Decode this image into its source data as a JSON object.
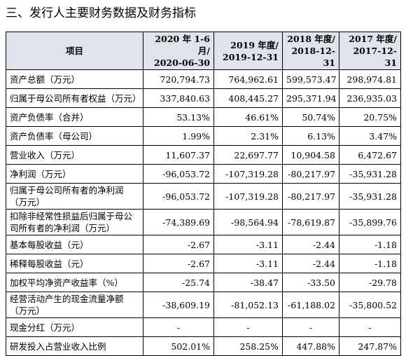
{
  "heading": "三、发行人主要财务数据及财务指标",
  "table": {
    "header": [
      [
        "项目"
      ],
      [
        "2020 年 1-6 月/",
        "2020-06-30"
      ],
      [
        "2019 年度/",
        "2019-12-31"
      ],
      [
        "2018 年度/",
        "2018-12-31"
      ],
      [
        "2017 年度/",
        "2017-12-31"
      ]
    ],
    "rows": [
      [
        "资产总额（万元）",
        "720,794.73",
        "764,962.61",
        "599,573.47",
        "298,974.81"
      ],
      [
        "归属于母公司所有者权益（万元）",
        "337,840.63",
        "408,445.27",
        "295,371.94",
        "236,935.03"
      ],
      [
        "资产负债率（合并）",
        "53.13%",
        "46.61%",
        "50.74%",
        "20.75%"
      ],
      [
        "资产负债率（母公司）",
        "1.99%",
        "2.31%",
        "6.13%",
        "3.47%"
      ],
      [
        "营业收入（万元）",
        "11,607.37",
        "22,697.77",
        "10,904.58",
        "6,472.67"
      ],
      [
        "净利润（万元）",
        "-96,053.72",
        "-107,319.28",
        "-80,217.97",
        "-35,931.28"
      ],
      [
        "归属于母公司所有者的净利润（万元）",
        "-96,053.72",
        "-107,319.28",
        "-80,217.97",
        "-35,931.28"
      ],
      [
        "扣除非经常性损益后归属于母公司所有者的净利润（万元）",
        "-74,389.69",
        "-98,564.94",
        "-78,619.87",
        "-35,899.76"
      ],
      [
        "基本每股收益（元）",
        "-2.67",
        "-3.11",
        "-2.44",
        "-1.18"
      ],
      [
        "稀释每股收益（元）",
        "-2.67",
        "-3.11",
        "-2.44",
        "-1.18"
      ],
      [
        "加权平均净资产收益率（%）",
        "-25.74",
        "-38.47",
        "-33.50",
        "-29.78"
      ],
      [
        "经营活动产生的现金流量净额（万元）",
        "-38,609.19",
        "-81,052.13",
        "-61,188.02",
        "-35,800.52"
      ],
      [
        "现金分红（万元）",
        "-",
        "-",
        "-",
        "-"
      ],
      [
        "研发投入占营业收入比例",
        "502.01%",
        "258.25%",
        "447.88%",
        "247.87%"
      ]
    ]
  }
}
